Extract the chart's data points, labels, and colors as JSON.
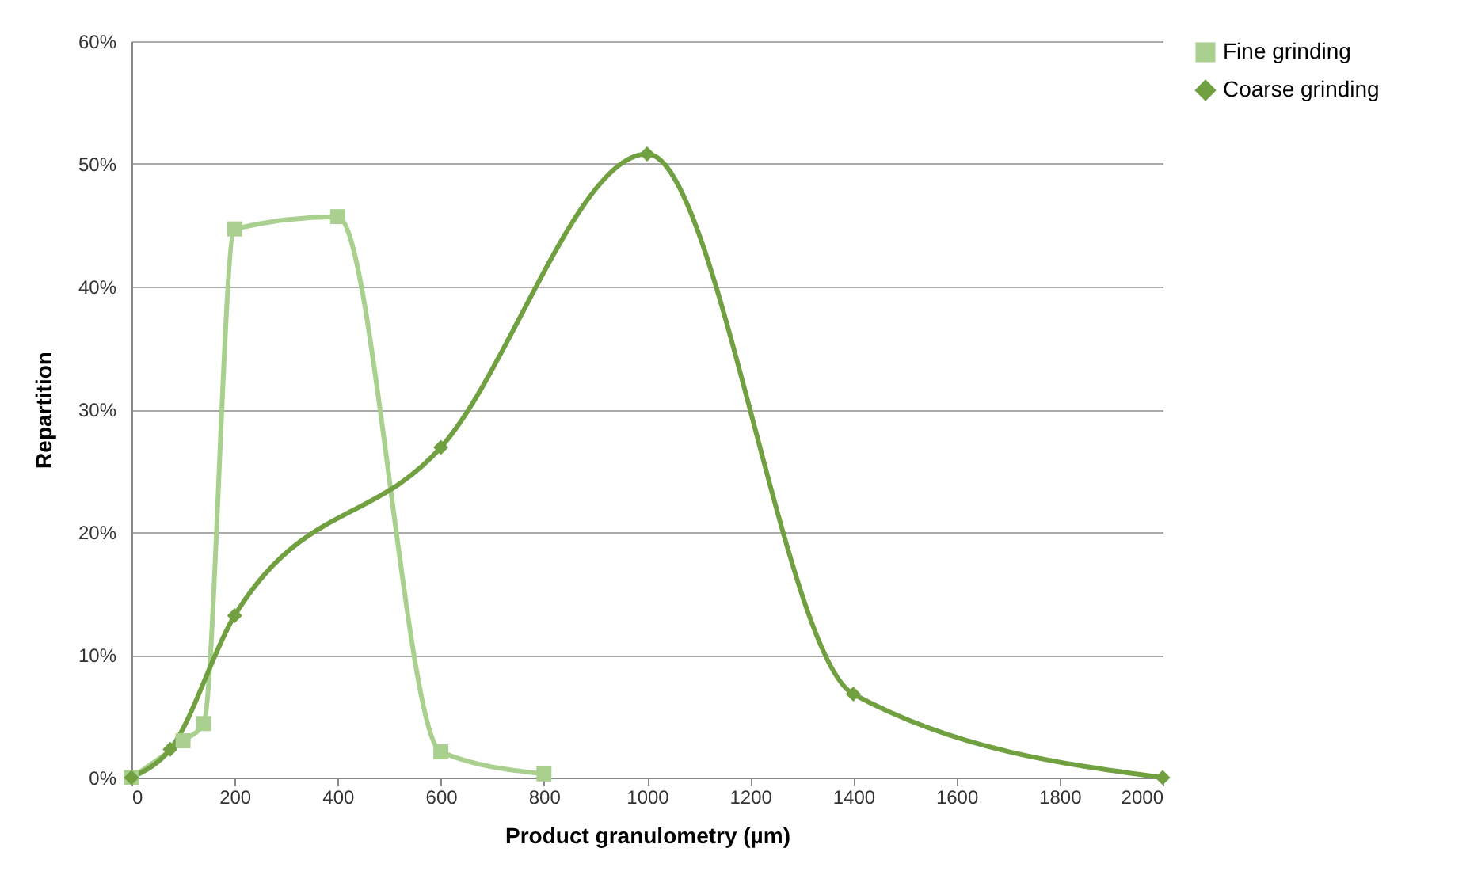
{
  "chart_data": {
    "type": "line",
    "xlabel": "Product granulometry (µm)",
    "ylabel": "Repartition",
    "xlim": [
      0,
      2000
    ],
    "xticks": [
      0,
      200,
      400,
      600,
      800,
      1000,
      1200,
      1400,
      1600,
      1800,
      2000
    ],
    "ylim": [
      0,
      60
    ],
    "yticks": [
      {
        "value": 0,
        "label": "0%"
      },
      {
        "value": 10,
        "label": "10%"
      },
      {
        "value": 20,
        "label": "20%"
      },
      {
        "value": 30,
        "label": "30%"
      },
      {
        "value": 40,
        "label": "40%"
      },
      {
        "value": 50,
        "label": "50%"
      },
      {
        "value": 60,
        "label": "60%"
      }
    ],
    "grid": "y",
    "legend": "right",
    "series": [
      {
        "name": "Fine grinding",
        "color": "#a9d08e",
        "marker": "square",
        "x": [
          0,
          100,
          140,
          200,
          400,
          600,
          800
        ],
        "values": [
          0,
          3,
          4.4,
          44.7,
          45.7,
          2.1,
          0.3
        ]
      },
      {
        "name": "Coarse grinding",
        "color": "#70a040",
        "marker": "diamond",
        "x": [
          0,
          75,
          200,
          600,
          1000,
          1400,
          2000
        ],
        "values": [
          0,
          2.3,
          13.2,
          26.9,
          50.8,
          6.8,
          0
        ]
      }
    ]
  }
}
